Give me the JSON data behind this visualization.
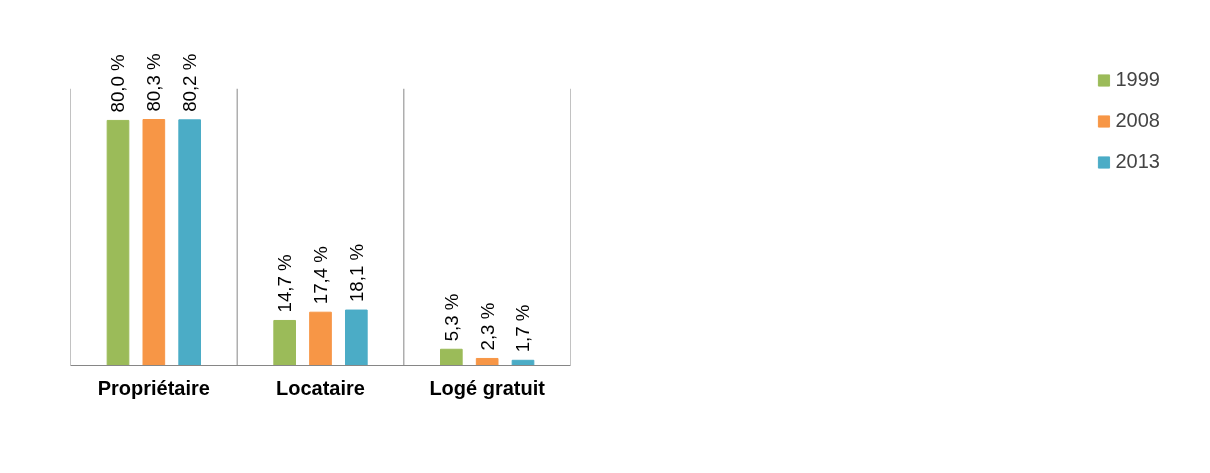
{
  "chart_data": {
    "type": "bar",
    "categories": [
      "Propriétaire",
      "Locataire",
      "Logé gratuit"
    ],
    "series": [
      {
        "name": "1999",
        "color": "#9bbb59",
        "values": [
          80.0,
          14.7,
          5.3
        ],
        "value_labels": [
          "80,0 %",
          "14,7 %",
          "5,3 %"
        ]
      },
      {
        "name": "2008",
        "color": "#f79646",
        "values": [
          80.3,
          17.4,
          2.3
        ],
        "value_labels": [
          "80,3 %",
          "17,4 %",
          "2,3 %"
        ]
      },
      {
        "name": "2013",
        "color": "#4bacc6",
        "values": [
          80.2,
          18.1,
          1.7
        ],
        "value_labels": [
          "80,2 %",
          "18,1 %",
          "1,7 %"
        ]
      }
    ],
    "grid": "x",
    "legend": "right"
  }
}
